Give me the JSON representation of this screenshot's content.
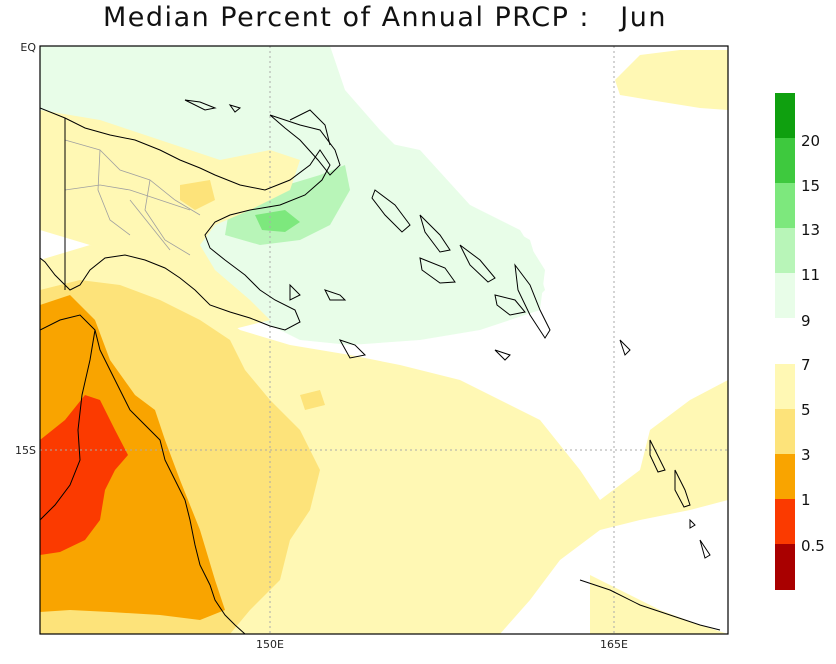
{
  "title": "Median Percent of Annual PRCP :   Jun",
  "axes": {
    "y_labels": [
      "EQ",
      "15S"
    ],
    "x_labels": [
      "150E",
      "165E"
    ]
  },
  "legend": {
    "labels": [
      "20",
      "15",
      "13",
      "11",
      "9",
      "7",
      "5",
      "3",
      "1",
      "0.5"
    ],
    "wet_colors": [
      "#0fa00f",
      "#3ec93e",
      "#7de87d",
      "#b8f5b8",
      "#e8fde8"
    ],
    "dry_colors": [
      "#fff8b4",
      "#fde37a",
      "#f9a400",
      "#fb3a00",
      "#a90000"
    ]
  },
  "colors": {
    "coast": "#000000",
    "border": "#a0a0a0",
    "grid": "#aaaaaa",
    "frame": "#000000"
  }
}
